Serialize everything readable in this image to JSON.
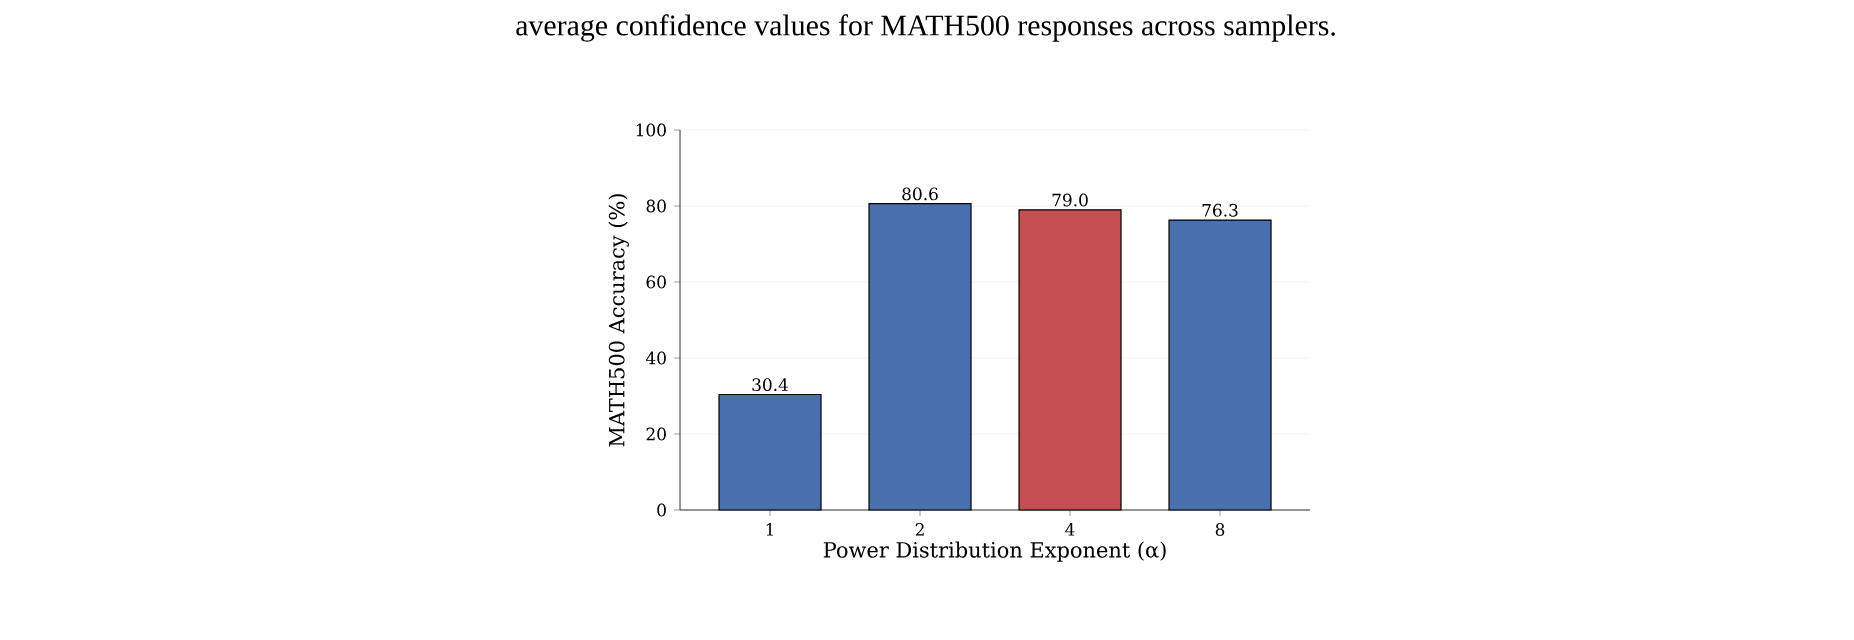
{
  "chart_data": {
    "type": "bar",
    "annotations": [
      "average confidence values for MATH500 responses across samplers."
    ],
    "xlabel": "Power Distribution Exponent (α)",
    "ylabel": "MATH500 Accuracy (%)",
    "categories": [
      "1",
      "2",
      "4",
      "8"
    ],
    "values": [
      30.4,
      80.6,
      79.0,
      76.3
    ],
    "colors": [
      "#4a6fae",
      "#4a6fae",
      "#c44e52",
      "#4a6fae"
    ],
    "value_labels": [
      "30.4",
      "80.6",
      "79.0",
      "76.3"
    ],
    "ylim": [
      0,
      100
    ],
    "yticks": [
      0,
      20,
      40,
      60,
      80,
      100
    ],
    "grid": "y"
  }
}
